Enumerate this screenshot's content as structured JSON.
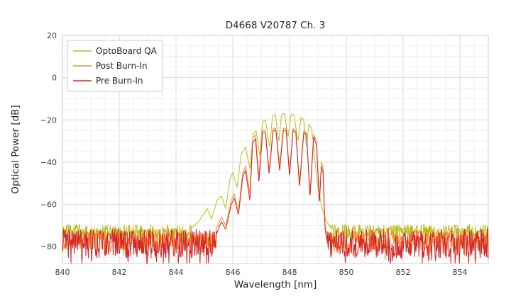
{
  "chart_data": {
    "type": "line",
    "title": "D4668 V20787 Ch. 3",
    "xlabel": "Wavelength [nm]",
    "ylabel": "Optical Power [dB]",
    "xlim": [
      840,
      855
    ],
    "ylim": [
      -88,
      20
    ],
    "xticks": [
      840,
      842,
      844,
      846,
      848,
      850,
      852,
      854
    ],
    "yticks": [
      20,
      0,
      -20,
      -40,
      -60,
      -80
    ],
    "minor_x_step": 0.5,
    "minor_y_step": 5,
    "grid": true,
    "legend_position": "upper left",
    "series": [
      {
        "name": "OptoBoard QA",
        "color": "#bcbd22",
        "noise_floor": -73,
        "noise_amp": 3.5,
        "noise_deep": 3,
        "envelope": [
          [
            844.5,
            -72
          ],
          [
            844.8,
            -68
          ],
          [
            845.0,
            -64
          ],
          [
            845.1,
            -62
          ],
          [
            845.25,
            -67
          ],
          [
            845.45,
            -58
          ],
          [
            845.6,
            -56
          ],
          [
            845.75,
            -62
          ],
          [
            845.9,
            -48
          ],
          [
            846.0,
            -45
          ],
          [
            846.15,
            -52
          ],
          [
            846.3,
            -36
          ],
          [
            846.45,
            -33
          ],
          [
            846.6,
            -43
          ],
          [
            846.72,
            -27
          ],
          [
            846.82,
            -25
          ],
          [
            846.95,
            -37
          ],
          [
            847.05,
            -21
          ],
          [
            847.15,
            -20
          ],
          [
            847.3,
            -33
          ],
          [
            847.4,
            -18
          ],
          [
            847.5,
            -17.5
          ],
          [
            847.62,
            -30
          ],
          [
            847.72,
            -17.5
          ],
          [
            847.82,
            -17
          ],
          [
            847.95,
            -28
          ],
          [
            848.05,
            -17.5
          ],
          [
            848.15,
            -17.5
          ],
          [
            848.3,
            -30
          ],
          [
            848.4,
            -19
          ],
          [
            848.5,
            -20
          ],
          [
            848.6,
            -33
          ],
          [
            848.68,
            -22
          ],
          [
            848.78,
            -24
          ],
          [
            848.9,
            -40
          ],
          [
            849.0,
            -52
          ],
          [
            849.15,
            -62
          ],
          [
            849.3,
            -68
          ],
          [
            849.5,
            -72
          ]
        ]
      },
      {
        "name": "Post Burn-In",
        "color": "#f78b29",
        "noise_floor": -77,
        "noise_amp": 4.5,
        "noise_deep": 5,
        "envelope": [
          [
            845.4,
            -72
          ],
          [
            845.6,
            -66
          ],
          [
            845.75,
            -70
          ],
          [
            845.95,
            -58
          ],
          [
            846.05,
            -55
          ],
          [
            846.2,
            -63
          ],
          [
            846.35,
            -45
          ],
          [
            846.45,
            -42
          ],
          [
            846.6,
            -55
          ],
          [
            846.7,
            -29
          ],
          [
            846.8,
            -27
          ],
          [
            846.92,
            -47
          ],
          [
            847.05,
            -25
          ],
          [
            847.15,
            -25
          ],
          [
            847.28,
            -44
          ],
          [
            847.42,
            -24
          ],
          [
            847.52,
            -24
          ],
          [
            847.65,
            -42
          ],
          [
            847.78,
            -24
          ],
          [
            847.88,
            -24
          ],
          [
            848.0,
            -45
          ],
          [
            848.12,
            -24
          ],
          [
            848.22,
            -25
          ],
          [
            848.35,
            -50
          ],
          [
            848.5,
            -25
          ],
          [
            848.6,
            -26
          ],
          [
            848.72,
            -55
          ],
          [
            848.85,
            -27
          ],
          [
            848.95,
            -30
          ],
          [
            849.05,
            -58
          ],
          [
            849.12,
            -40
          ],
          [
            849.18,
            -42
          ],
          [
            849.25,
            -70
          ],
          [
            849.35,
            -78
          ]
        ]
      },
      {
        "name": "Pre Burn-In",
        "color": "#d62728",
        "noise_floor": -78.5,
        "noise_amp": 7,
        "noise_deep": 7,
        "envelope": [
          [
            845.4,
            -75
          ],
          [
            845.6,
            -68
          ],
          [
            845.75,
            -72
          ],
          [
            845.95,
            -60
          ],
          [
            846.05,
            -57
          ],
          [
            846.2,
            -65
          ],
          [
            846.35,
            -47
          ],
          [
            846.45,
            -44
          ],
          [
            846.6,
            -58
          ],
          [
            846.7,
            -31
          ],
          [
            846.8,
            -29
          ],
          [
            846.92,
            -50
          ],
          [
            847.05,
            -26
          ],
          [
            847.15,
            -26
          ],
          [
            847.28,
            -46
          ],
          [
            847.42,
            -25
          ],
          [
            847.52,
            -25
          ],
          [
            847.65,
            -44
          ],
          [
            847.78,
            -25
          ],
          [
            847.88,
            -25
          ],
          [
            848.0,
            -47
          ],
          [
            848.12,
            -25
          ],
          [
            848.22,
            -26
          ],
          [
            848.35,
            -52
          ],
          [
            848.5,
            -26
          ],
          [
            848.6,
            -27
          ],
          [
            848.72,
            -57
          ],
          [
            848.85,
            -28
          ],
          [
            848.95,
            -32
          ],
          [
            849.05,
            -60
          ],
          [
            849.12,
            -42
          ],
          [
            849.18,
            -45
          ],
          [
            849.25,
            -72
          ],
          [
            849.35,
            -80
          ]
        ]
      }
    ]
  },
  "style": {
    "grid_major_color": "#d9d9d9",
    "grid_minor_color": "#ececec",
    "frame_color": "#cccccc",
    "text_color": "#262626",
    "tick_color": "#3b3b3b",
    "background": "#ffffff"
  }
}
